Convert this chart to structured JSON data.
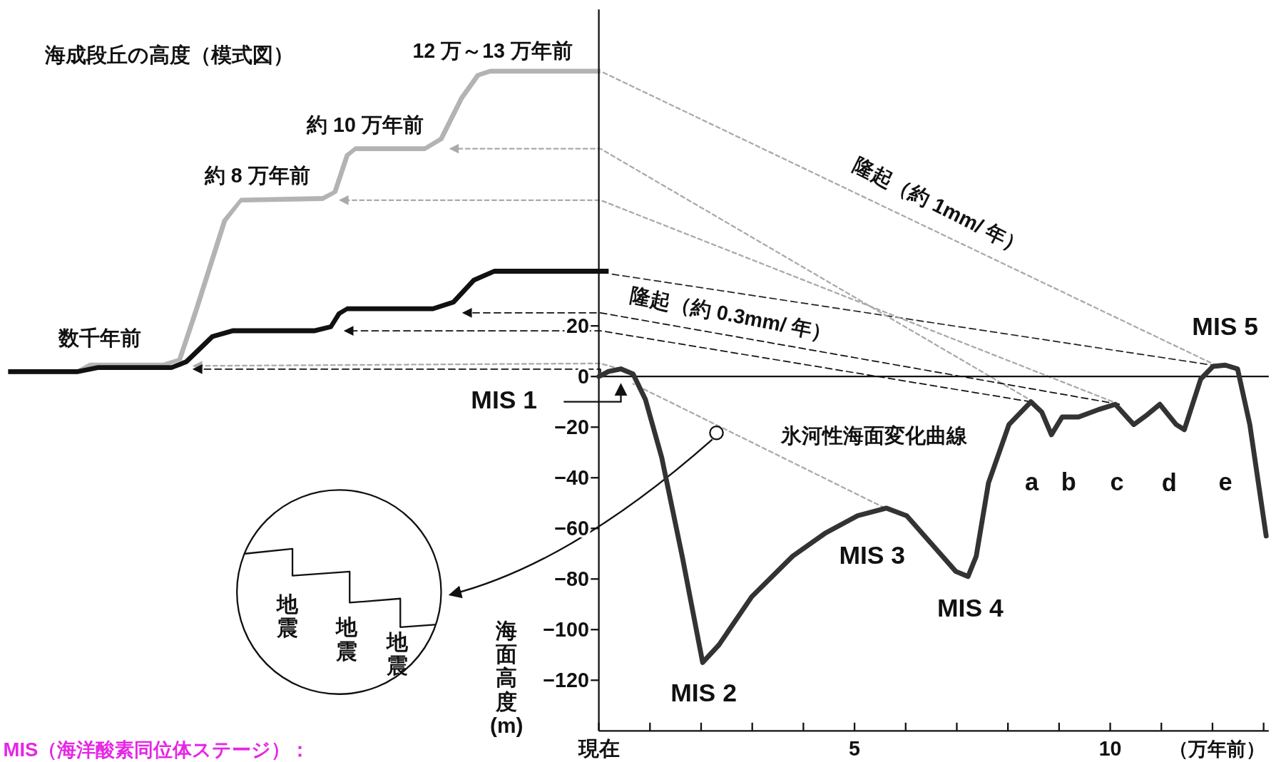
{
  "chart_data": {
    "type": "line",
    "xlabel": "（万年前）",
    "ylabel": "海面高度(m)",
    "xlim": [
      0,
      13.1
    ],
    "ylim": [
      -140,
      145
    ],
    "xticks": [
      {
        "value": 0,
        "label": "現在"
      },
      {
        "value": 1,
        "label": null
      },
      {
        "value": 2,
        "label": null
      },
      {
        "value": 3,
        "label": null
      },
      {
        "value": 4,
        "label": null
      },
      5,
      {
        "value": 6,
        "label": null
      },
      {
        "value": 7,
        "label": null
      },
      {
        "value": 8,
        "label": null
      },
      {
        "value": 9,
        "label": null
      },
      10,
      {
        "value": 11,
        "label": null
      },
      {
        "value": 12,
        "label": null
      },
      {
        "value": 13,
        "label": null
      }
    ],
    "yticks": [
      20,
      0,
      {
        "value": -20,
        "label": "−20"
      },
      {
        "value": -40,
        "label": "−40"
      },
      {
        "value": -60,
        "label": "−60"
      },
      {
        "value": -80,
        "label": "−80"
      },
      {
        "value": -100,
        "label": "−100"
      },
      {
        "value": -120,
        "label": "−120"
      }
    ],
    "x": [
      0,
      0.19,
      0.43,
      0.67,
      0.91,
      1.23,
      1.63,
      2.03,
      2.35,
      2.99,
      3.79,
      4.42,
      5.06,
      5.62,
      6.02,
      6.5,
      6.98,
      7.22,
      7.38,
      7.62,
      8.02,
      8.45,
      8.66,
      8.85,
      9.06,
      9.38,
      9.78,
      10.1,
      10.46,
      10.73,
      10.97,
      11.29,
      11.45,
      11.77,
      12.01,
      12.25,
      12.49,
      12.73,
      13.05
    ],
    "series": [
      {
        "color": "#333333",
        "values": [
          0,
          2,
          3,
          1,
          -9,
          -32,
          -71,
          -113,
          -106,
          -87,
          -71,
          -62,
          -55,
          -52,
          -55,
          -66,
          -77,
          -79,
          -71,
          -42,
          -19,
          -10,
          -14,
          -23,
          -16,
          -16,
          -13,
          -11,
          -19,
          -15,
          -11,
          -19,
          -21,
          -1,
          4,
          4.5,
          3,
          -19,
          -63
        ]
      }
    ],
    "line_style": "solid",
    "marker": "none",
    "ref_lines": [
      {
        "axis": "y",
        "value": 0,
        "color": "#111111"
      }
    ],
    "annotations": [
      "MIS 1",
      {
        "text": "MIS 2",
        "x": 2.05,
        "y": -113
      },
      {
        "text": "MIS 3",
        "x": 5.6,
        "y": -52
      },
      {
        "text": "MIS 4",
        "x": 7.2,
        "y": -79
      },
      {
        "text": "MIS 5",
        "x": 12.2,
        "y": 4.5
      },
      {
        "text": "a",
        "x": 8.45,
        "y": -10
      },
      {
        "text": "b",
        "x": 8.85,
        "y": -23
      },
      {
        "text": "c",
        "x": 10.1,
        "y": -11
      },
      {
        "text": "d",
        "x": 10.85,
        "y": -15
      },
      "e",
      "氷河性海面変化曲線",
      "海成段丘の高度（模式図）",
      "12 万～13 万年前",
      "約 10 万年前",
      "約 8 万年前",
      "数千年前",
      "隆起（約 1mm/ 年）",
      "隆起（約 0.3mm/ 年）",
      "地震",
      "地震",
      "地震",
      "MIS（海洋酸素同位体ステージ）："
    ]
  }
}
